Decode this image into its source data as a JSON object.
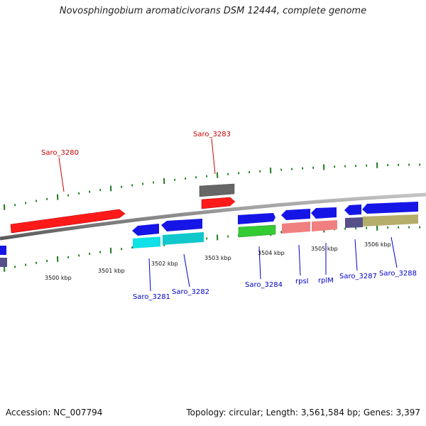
{
  "title": "Novosphingobium aromaticivorans DSM 12444, complete genome",
  "footer": {
    "accession": "Accession: NC_007794",
    "summary": "Topology: circular; Length: 3,561,584 bp; Genes: 3,397"
  },
  "scale": {
    "kbp_labels": [
      "3500 kbp",
      "3501 kbp",
      "3502 kbp",
      "3503 kbp",
      "3504 kbp",
      "3505 kbp",
      "3506 kbp"
    ]
  },
  "gene_labels": {
    "saro_3280": "Saro_3280",
    "saro_3283": "Saro_3283",
    "saro_3281": "Saro_3281",
    "saro_3282": "Saro_3282",
    "saro_3284": "Saro_3284",
    "rpsI": "rpsI",
    "rplM": "rplM",
    "saro_3287": "Saro_3287",
    "saro_3288": "Saro_3288"
  },
  "colors": {
    "gene_red": "#ff1a1a",
    "gene_blue": "#1515e6",
    "gene_gray": "#666666",
    "gene_cyan": "#10e0e8",
    "gene_green": "#33cc33",
    "gene_salmon": "#f08080",
    "gene_purple": "#55508a",
    "gene_olive": "#b5ad6a",
    "tick_green": "#1a7a1a",
    "backbone": "#8a8a8a",
    "label_red": "#cc0000",
    "label_blue": "#0000cc"
  }
}
